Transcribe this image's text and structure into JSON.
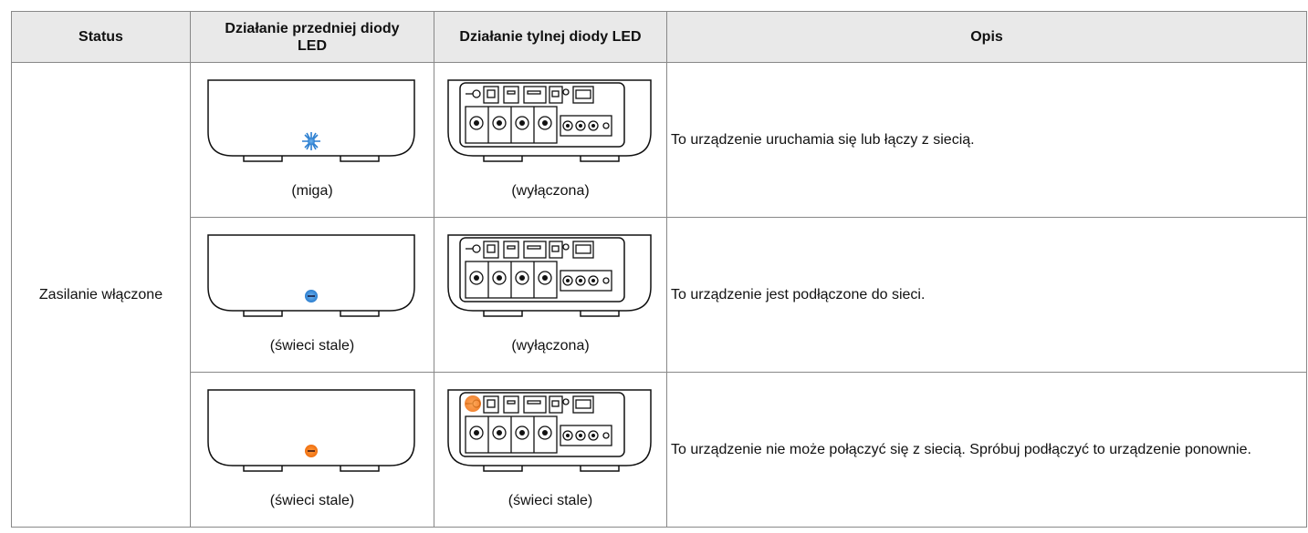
{
  "table": {
    "header": [
      "Status",
      "Działanie przedniej diody LED",
      "Działanie tylnej diody LED",
      "Opis"
    ],
    "status": "Zasilanie włączone",
    "rows": [
      [
        "(miga)",
        "(wyłączona)",
        "To urządzenie uruchamia się lub łączy z siecią."
      ],
      [
        "(świeci stale)",
        "(wyłączona)",
        "To urządzenie jest podłączone do sieci."
      ],
      [
        "(świeci stale)",
        "(świeci stale)",
        "To urządzenie nie może połączyć się z siecią. Spróbuj podłączyć to urządzenie ponownie."
      ]
    ]
  }
}
